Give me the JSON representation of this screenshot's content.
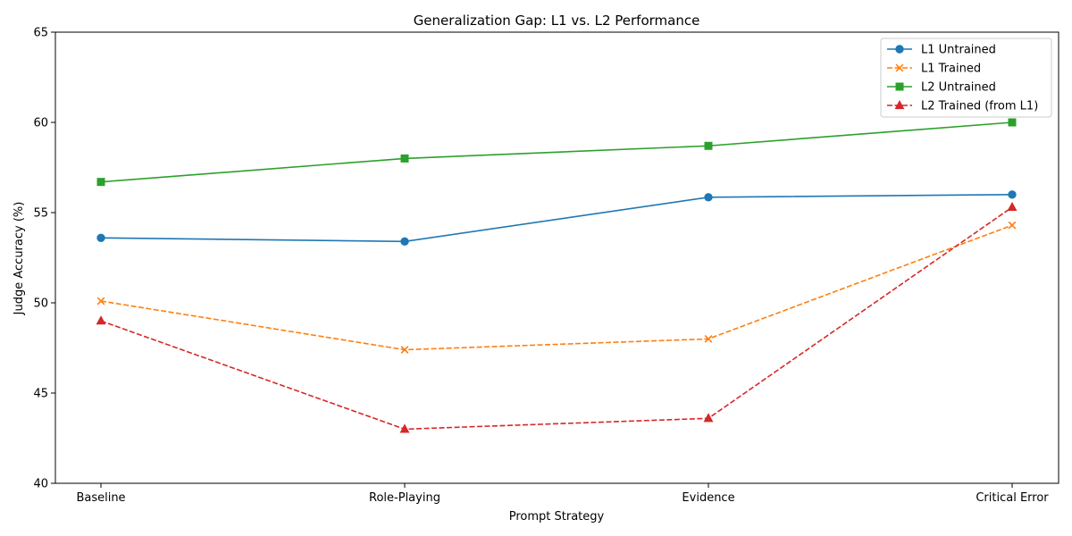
{
  "chart_data": {
    "type": "line",
    "title": "Generalization Gap: L1 vs. L2 Performance",
    "xlabel": "Prompt Strategy",
    "ylabel": "Judge Accuracy (%)",
    "categories": [
      "Baseline",
      "Role-Playing",
      "Evidence",
      "Critical Error"
    ],
    "ylim": [
      40,
      65
    ],
    "yticks": [
      40,
      45,
      50,
      55,
      60,
      65
    ],
    "grid": false,
    "legend_position": "top-right",
    "series": [
      {
        "name": "L1 Untrained",
        "values": [
          53.6,
          53.4,
          55.85,
          56.0
        ],
        "color": "#1f77b4",
        "dash": "solid",
        "marker": "circle"
      },
      {
        "name": "L1 Trained",
        "values": [
          50.1,
          47.4,
          48.0,
          54.3
        ],
        "color": "#ff7f0e",
        "dash": "dashed",
        "marker": "x"
      },
      {
        "name": "L2 Untrained",
        "values": [
          56.7,
          58.0,
          58.7,
          60.0
        ],
        "color": "#2ca02c",
        "dash": "solid",
        "marker": "square"
      },
      {
        "name": "L2 Trained (from L1)",
        "values": [
          49.0,
          43.0,
          43.6,
          55.3
        ],
        "color": "#d62728",
        "dash": "dashed",
        "marker": "triangle"
      }
    ]
  }
}
